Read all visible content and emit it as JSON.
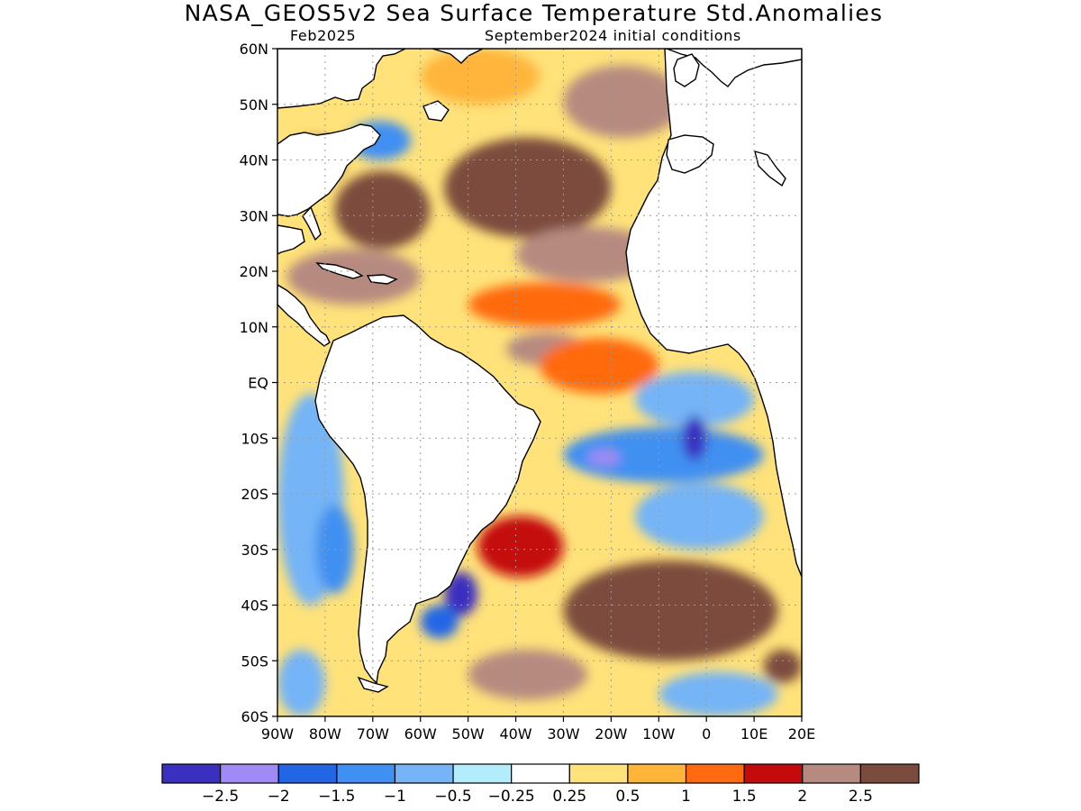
{
  "title": "NASA_GEOS5v2 Sea Surface Temperature Std.Anomalies",
  "subtitle_left": "Feb2025",
  "subtitle_right": "September2024 initial conditions",
  "axes": {
    "lat_ticks": [
      "60N",
      "50N",
      "40N",
      "30N",
      "20N",
      "10N",
      "EQ",
      "10S",
      "20S",
      "30S",
      "40S",
      "50S",
      "60S"
    ],
    "lon_ticks": [
      "90W",
      "80W",
      "70W",
      "60W",
      "50W",
      "40W",
      "30W",
      "20W",
      "10W",
      "0",
      "10E",
      "20E"
    ],
    "lat_range": [
      -60,
      60
    ],
    "lon_range": [
      -90,
      20
    ],
    "grid": "dotted"
  },
  "colorbar": {
    "colors": [
      "#3a2fbf",
      "#a08af5",
      "#2266e6",
      "#3f90f2",
      "#75b4f6",
      "#b3ecfb",
      "#ffffff",
      "#ffe27a",
      "#ffb53a",
      "#ff6a10",
      "#c40a0a",
      "#b78a80",
      "#7b4b3e"
    ],
    "labels": [
      "−2.5",
      "−2",
      "−1.5",
      "−1",
      "−0.5",
      "−0.25",
      "0.25",
      "0.5",
      "1",
      "1.5",
      "2",
      "2.5"
    ]
  },
  "chart_data": {
    "type": "heatmap",
    "variable": "Sea Surface Temperature Std.Anomalies",
    "units": "",
    "levels": [
      -2.5,
      -2,
      -1.5,
      -1,
      -0.5,
      -0.25,
      0.25,
      0.5,
      1,
      1.5,
      2,
      2.5
    ],
    "regions": [
      {
        "lon": [
          -88,
          -76
        ],
        "lat": [
          36,
          44
        ],
        "value": 2.7
      },
      {
        "lon": [
          -75,
          -62
        ],
        "lat": [
          40,
          47
        ],
        "value": -1.2
      },
      {
        "lon": [
          -78,
          -58
        ],
        "lat": [
          24,
          38
        ],
        "value": 2.6
      },
      {
        "lon": [
          -55,
          -20
        ],
        "lat": [
          26,
          44
        ],
        "value": 2.6
      },
      {
        "lon": [
          -40,
          -10
        ],
        "lat": [
          18,
          28
        ],
        "value": 2.1
      },
      {
        "lon": [
          -30,
          -5
        ],
        "lat": [
          44,
          57
        ],
        "value": 2.4
      },
      {
        "lon": [
          -60,
          -35
        ],
        "lat": [
          50,
          60
        ],
        "value": 0.5
      },
      {
        "lon": [
          -88,
          -60
        ],
        "lat": [
          14,
          24
        ],
        "value": 2.0
      },
      {
        "lon": [
          -50,
          -18
        ],
        "lat": [
          10,
          18
        ],
        "value": 1.3
      },
      {
        "lon": [
          -42,
          -25
        ],
        "lat": [
          3,
          9
        ],
        "value": 2.1
      },
      {
        "lon": [
          -35,
          -10
        ],
        "lat": [
          -2,
          8
        ],
        "value": 1.0
      },
      {
        "lon": [
          -15,
          10
        ],
        "lat": [
          -8,
          2
        ],
        "value": -0.8
      },
      {
        "lon": [
          -30,
          12
        ],
        "lat": [
          -18,
          -8
        ],
        "value": -1.2
      },
      {
        "lon": [
          -5,
          0
        ],
        "lat": [
          -14,
          -6
        ],
        "value": -2.6
      },
      {
        "lon": [
          -25,
          -18
        ],
        "lat": [
          -15,
          -12
        ],
        "value": -2.3
      },
      {
        "lon": [
          -15,
          12
        ],
        "lat": [
          -30,
          -18
        ],
        "value": -0.6
      },
      {
        "lon": [
          -90,
          -76
        ],
        "lat": [
          -40,
          -2
        ],
        "value": -0.8
      },
      {
        "lon": [
          -82,
          -74
        ],
        "lat": [
          -38,
          -22
        ],
        "value": -1.3
      },
      {
        "lon": [
          -55,
          -48
        ],
        "lat": [
          -42,
          -34
        ],
        "value": -2.6
      },
      {
        "lon": [
          -60,
          -52
        ],
        "lat": [
          -46,
          -40
        ],
        "value": -1.6
      },
      {
        "lon": [
          -48,
          -30
        ],
        "lat": [
          -35,
          -24
        ],
        "value": 1.6
      },
      {
        "lon": [
          -30,
          15
        ],
        "lat": [
          -50,
          -32
        ],
        "value": 2.5
      },
      {
        "lon": [
          -50,
          -25
        ],
        "lat": [
          -57,
          -48
        ],
        "value": 2.2
      },
      {
        "lon": [
          -10,
          15
        ],
        "lat": [
          -60,
          -52
        ],
        "value": -0.6
      },
      {
        "lon": [
          12,
          20
        ],
        "lat": [
          -54,
          -48
        ],
        "value": 2.6
      },
      {
        "lon": [
          -90,
          -80
        ],
        "lat": [
          -60,
          -48
        ],
        "value": -0.6
      }
    ]
  }
}
